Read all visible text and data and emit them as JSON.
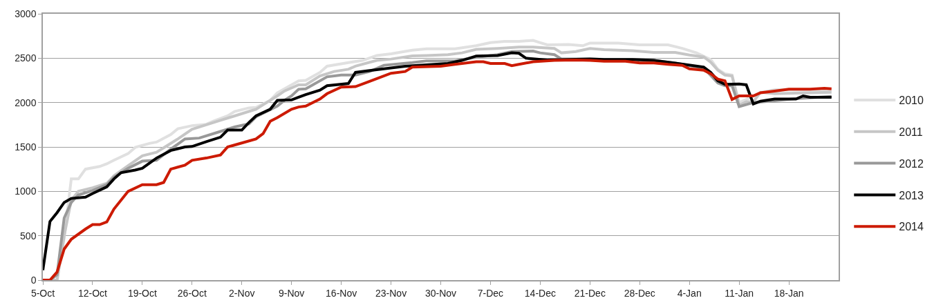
{
  "chart_data": {
    "type": "line",
    "xlim": [
      "2000-10-05",
      "2001-01-25"
    ],
    "xticks": [
      {
        "value": "2000-10-05",
        "label": "5-Oct"
      },
      {
        "value": "2000-10-12",
        "label": "12-Oct"
      },
      {
        "value": "2000-10-19",
        "label": "19-Oct"
      },
      {
        "value": "2000-10-26",
        "label": "26-Oct"
      },
      {
        "value": "2000-11-02",
        "label": "2-Nov"
      },
      {
        "value": "2000-11-09",
        "label": "9-Nov"
      },
      {
        "value": "2000-11-16",
        "label": "16-Nov"
      },
      {
        "value": "2000-11-23",
        "label": "23-Nov"
      },
      {
        "value": "2000-11-30",
        "label": "30-Nov"
      },
      {
        "value": "2000-12-07",
        "label": "7-Dec"
      },
      {
        "value": "2000-12-14",
        "label": "14-Dec"
      },
      {
        "value": "2000-12-21",
        "label": "21-Dec"
      },
      {
        "value": "2000-12-28",
        "label": "28-Dec"
      },
      {
        "value": "2001-01-04",
        "label": "4-Jan"
      },
      {
        "value": "2001-01-11",
        "label": "11-Jan"
      },
      {
        "value": "2001-01-18",
        "label": "18-Jan"
      }
    ],
    "ylim": [
      0,
      3000
    ],
    "yticks": [
      0,
      500,
      1000,
      1500,
      2000,
      2500,
      3000
    ],
    "grid": "y",
    "legend": "right",
    "marker": "none",
    "line_style": "solid",
    "series": [
      {
        "name": "2010",
        "color": "#e0e0e0",
        "x": [
          "2000-10-05",
          "2000-10-07",
          "2000-10-08",
          "2000-10-09",
          "2000-10-10",
          "2000-10-11",
          "2000-10-13",
          "2000-10-14",
          "2000-10-15",
          "2000-10-17",
          "2000-10-18",
          "2000-10-20",
          "2000-10-21",
          "2000-10-23",
          "2000-10-24",
          "2000-10-26",
          "2000-10-28",
          "2000-10-29",
          "2000-10-31",
          "2000-11-01",
          "2000-11-03",
          "2000-11-04",
          "2000-11-06",
          "2000-11-07",
          "2000-11-09",
          "2000-11-10",
          "2000-11-11",
          "2000-11-13",
          "2000-11-14",
          "2000-11-17",
          "2000-11-19",
          "2000-11-21",
          "2000-11-23",
          "2000-11-26",
          "2000-11-28",
          "2000-12-02",
          "2000-12-05",
          "2000-12-07",
          "2000-12-09",
          "2000-12-11",
          "2000-12-13",
          "2000-12-14",
          "2000-12-15",
          "2000-12-18",
          "2000-12-20",
          "2000-12-21",
          "2000-12-25",
          "2000-12-28",
          "2001-01-01",
          "2001-01-03",
          "2001-01-05",
          "2001-01-07",
          "2001-01-08",
          "2001-01-09",
          "2001-01-10",
          "2001-01-11",
          "2001-01-12",
          "2001-01-14",
          "2001-01-16",
          "2001-01-24"
        ],
        "values": [
          0,
          0,
          475,
          1140,
          1140,
          1250,
          1280,
          1310,
          1350,
          1425,
          1495,
          1540,
          1555,
          1640,
          1705,
          1740,
          1755,
          1790,
          1850,
          1900,
          1940,
          1945,
          2025,
          2110,
          2200,
          2245,
          2250,
          2340,
          2410,
          2450,
          2475,
          2530,
          2550,
          2590,
          2605,
          2605,
          2640,
          2675,
          2690,
          2690,
          2700,
          2675,
          2650,
          2655,
          2640,
          2670,
          2670,
          2650,
          2650,
          2610,
          2560,
          2485,
          2375,
          2325,
          2310,
          2000,
          2035,
          2115,
          2145,
          2135
        ]
      },
      {
        "name": "2011",
        "color": "#c6c6c6",
        "x": [
          "2000-10-05",
          "2000-10-07",
          "2000-10-08",
          "2000-10-09",
          "2000-10-10",
          "2000-10-12",
          "2000-10-14",
          "2000-10-15",
          "2000-10-17",
          "2000-10-19",
          "2000-10-21",
          "2000-10-22",
          "2000-10-24",
          "2000-10-26",
          "2000-10-28",
          "2000-10-30",
          "2000-11-01",
          "2000-11-03",
          "2000-11-04",
          "2000-11-05",
          "2000-11-07",
          "2000-11-08",
          "2000-11-10",
          "2000-11-11",
          "2000-11-13",
          "2000-11-15",
          "2000-11-17",
          "2000-11-18",
          "2000-11-21",
          "2000-11-23",
          "2000-11-26",
          "2000-11-28",
          "2000-12-01",
          "2000-12-03",
          "2000-12-05",
          "2000-12-08",
          "2000-12-11",
          "2000-12-13",
          "2000-12-16",
          "2000-12-17",
          "2000-12-19",
          "2000-12-21",
          "2000-12-23",
          "2000-12-27",
          "2000-12-30",
          "2001-01-02",
          "2001-01-04",
          "2001-01-06",
          "2001-01-07",
          "2001-01-08",
          "2001-01-09",
          "2001-01-10",
          "2001-01-11",
          "2001-01-12",
          "2001-01-13",
          "2001-01-14",
          "2001-01-16",
          "2001-01-24"
        ],
        "values": [
          0,
          0,
          500,
          900,
          1000,
          1040,
          1090,
          1175,
          1290,
          1400,
          1440,
          1490,
          1590,
          1700,
          1750,
          1800,
          1850,
          1900,
          1925,
          1975,
          2075,
          2130,
          2200,
          2200,
          2300,
          2350,
          2375,
          2410,
          2475,
          2490,
          2525,
          2530,
          2540,
          2560,
          2600,
          2610,
          2625,
          2625,
          2610,
          2560,
          2575,
          2610,
          2595,
          2585,
          2565,
          2565,
          2535,
          2515,
          2455,
          2365,
          2310,
          2300,
          1970,
          2010,
          2010,
          2115,
          2100,
          2115
        ]
      },
      {
        "name": "2012",
        "color": "#999999",
        "x": [
          "2000-10-05",
          "2000-10-06",
          "2000-10-07",
          "2000-10-08",
          "2000-10-09",
          "2000-10-10",
          "2000-10-12",
          "2000-10-14",
          "2000-10-15",
          "2000-10-17",
          "2000-10-19",
          "2000-10-21",
          "2000-10-23",
          "2000-10-25",
          "2000-10-27",
          "2000-10-30",
          "2000-11-01",
          "2000-11-03",
          "2000-11-04",
          "2000-11-07",
          "2000-11-08",
          "2000-11-09",
          "2000-11-10",
          "2000-11-11",
          "2000-11-14",
          "2000-11-16",
          "2000-11-18",
          "2000-11-20",
          "2000-11-22",
          "2000-11-26",
          "2000-11-28",
          "2000-12-02",
          "2000-12-05",
          "2000-12-08",
          "2000-12-10",
          "2000-12-13",
          "2000-12-14",
          "2000-12-16",
          "2000-12-17",
          "2000-12-21",
          "2000-12-24",
          "2000-12-27",
          "2000-12-30",
          "2001-01-02",
          "2001-01-06",
          "2001-01-08",
          "2001-01-09",
          "2001-01-10",
          "2001-01-11",
          "2001-01-13",
          "2001-01-16",
          "2001-01-19",
          "2001-01-24"
        ],
        "values": [
          0,
          0,
          60,
          700,
          875,
          960,
          1010,
          1075,
          1160,
          1260,
          1340,
          1350,
          1475,
          1590,
          1600,
          1675,
          1725,
          1760,
          1840,
          1960,
          2025,
          2075,
          2150,
          2155,
          2290,
          2310,
          2310,
          2350,
          2420,
          2450,
          2470,
          2470,
          2510,
          2540,
          2575,
          2580,
          2560,
          2540,
          2490,
          2490,
          2485,
          2485,
          2475,
          2445,
          2390,
          2220,
          2190,
          2190,
          1955,
          2000,
          2020,
          2045,
          2070
        ]
      },
      {
        "name": "2013",
        "color": "#000000",
        "x": [
          "2000-10-05",
          "2000-10-06",
          "2000-10-07",
          "2000-10-08",
          "2000-10-09",
          "2000-10-11",
          "2000-10-12",
          "2000-10-14",
          "2000-10-15",
          "2000-10-16",
          "2000-10-18",
          "2000-10-19",
          "2000-10-21",
          "2000-10-23",
          "2000-10-25",
          "2000-10-26",
          "2000-10-28",
          "2000-10-30",
          "2000-10-31",
          "2000-11-02",
          "2000-11-03",
          "2000-11-04",
          "2000-11-06",
          "2000-11-07",
          "2000-11-09",
          "2000-11-10",
          "2000-11-11",
          "2000-11-13",
          "2000-11-14",
          "2000-11-17",
          "2000-11-18",
          "2000-11-20",
          "2000-11-23",
          "2000-11-25",
          "2000-11-28",
          "2000-12-01",
          "2000-12-03",
          "2000-12-05",
          "2000-12-08",
          "2000-12-10",
          "2000-12-11",
          "2000-12-12",
          "2000-12-15",
          "2000-12-21",
          "2000-12-23",
          "2000-12-27",
          "2000-12-30",
          "2001-01-02",
          "2001-01-06",
          "2001-01-07",
          "2001-01-08",
          "2001-01-09",
          "2001-01-11",
          "2001-01-12",
          "2001-01-13",
          "2001-01-14",
          "2001-01-16",
          "2001-01-19",
          "2001-01-20",
          "2001-01-21",
          "2001-01-24"
        ],
        "values": [
          112,
          660,
          760,
          875,
          920,
          935,
          975,
          1050,
          1140,
          1210,
          1240,
          1260,
          1375,
          1460,
          1500,
          1505,
          1560,
          1610,
          1690,
          1690,
          1775,
          1850,
          1925,
          2025,
          2030,
          2060,
          2090,
          2140,
          2190,
          2215,
          2340,
          2360,
          2390,
          2410,
          2425,
          2440,
          2475,
          2525,
          2530,
          2560,
          2555,
          2500,
          2480,
          2490,
          2485,
          2485,
          2475,
          2445,
          2400,
          2340,
          2245,
          2205,
          2210,
          2200,
          1985,
          2015,
          2040,
          2040,
          2075,
          2060,
          2060
        ]
      },
      {
        "name": "2014",
        "color": "#cc1a00",
        "x": [
          "2000-10-05",
          "2000-10-06",
          "2000-10-07",
          "2000-10-08",
          "2000-10-09",
          "2000-10-11",
          "2000-10-12",
          "2000-10-13",
          "2000-10-14",
          "2000-10-15",
          "2000-10-17",
          "2000-10-19",
          "2000-10-21",
          "2000-10-22",
          "2000-10-23",
          "2000-10-25",
          "2000-10-26",
          "2000-10-28",
          "2000-10-30",
          "2000-10-31",
          "2000-11-02",
          "2000-11-04",
          "2000-11-05",
          "2000-11-06",
          "2000-11-07",
          "2000-11-09",
          "2000-11-10",
          "2000-11-11",
          "2000-11-13",
          "2000-11-14",
          "2000-11-16",
          "2000-11-18",
          "2000-11-20",
          "2000-11-23",
          "2000-11-25",
          "2000-11-26",
          "2000-11-30",
          "2000-12-02",
          "2000-12-05",
          "2000-12-06",
          "2000-12-07",
          "2000-12-09",
          "2000-12-10",
          "2000-12-11",
          "2000-12-13",
          "2000-12-16",
          "2000-12-19",
          "2000-12-21",
          "2000-12-23",
          "2000-12-26",
          "2000-12-28",
          "2000-12-30",
          "2001-01-01",
          "2001-01-03",
          "2001-01-04",
          "2001-01-06",
          "2001-01-07",
          "2001-01-08",
          "2001-01-09",
          "2001-01-10",
          "2001-01-11",
          "2001-01-13",
          "2001-01-14",
          "2001-01-16",
          "2001-01-18",
          "2001-01-21",
          "2001-01-23",
          "2001-01-24"
        ],
        "values": [
          0,
          0,
          90,
          350,
          460,
          575,
          625,
          625,
          655,
          800,
          1000,
          1075,
          1075,
          1100,
          1250,
          1295,
          1350,
          1375,
          1410,
          1500,
          1545,
          1590,
          1650,
          1790,
          1830,
          1925,
          1950,
          1960,
          2040,
          2100,
          2175,
          2180,
          2240,
          2330,
          2350,
          2400,
          2410,
          2430,
          2460,
          2460,
          2440,
          2440,
          2415,
          2430,
          2460,
          2475,
          2480,
          2475,
          2465,
          2465,
          2447,
          2447,
          2430,
          2420,
          2380,
          2365,
          2325,
          2265,
          2245,
          2035,
          2075,
          2075,
          2110,
          2130,
          2150,
          2150,
          2160,
          2155
        ]
      }
    ]
  }
}
